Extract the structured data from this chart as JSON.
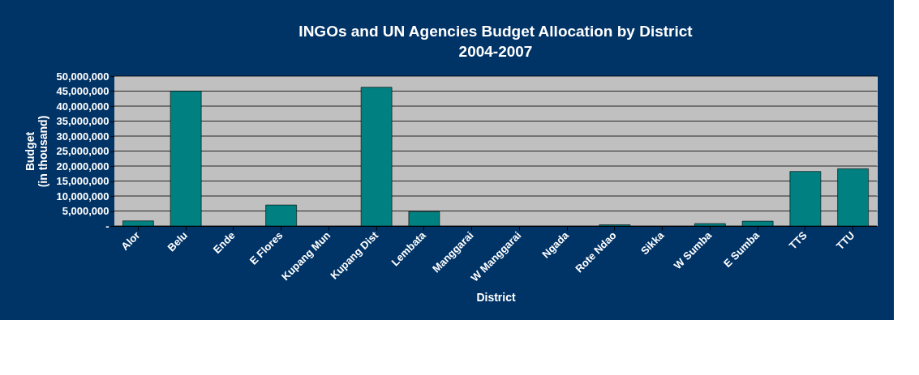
{
  "chart_data": {
    "type": "bar",
    "title": "INGOs and UN Agencies Budget Allocation by District",
    "subtitle": "2004-2007",
    "xlabel": "District",
    "ylabel": "Budget\n(in thousand)",
    "categories": [
      "Alor",
      "Belu",
      "Ende",
      "E Flores",
      "Kupang Mun",
      "Kupang Dist",
      "Lembata",
      "Manggarai",
      "W Manggarai",
      "Ngada",
      "Rote Ndao",
      "Sikka",
      "W Sumba",
      "E Sumba",
      "TTS",
      "TTU"
    ],
    "values": [
      1700000,
      45000000,
      null,
      7000000,
      null,
      46300000,
      4800000,
      null,
      null,
      null,
      400000,
      null,
      800000,
      1600000,
      18200000,
      19100000
    ],
    "color": "#008080",
    "ylim": [
      0,
      50000000
    ],
    "yticks": [
      {
        "value": 0,
        "label": "-"
      },
      {
        "value": 5000000,
        "label": "5,000,000"
      },
      {
        "value": 10000000,
        "label": "10,000,000"
      },
      {
        "value": 15000000,
        "label": "15,000,000"
      },
      {
        "value": 20000000,
        "label": "20,000,000"
      },
      {
        "value": 25000000,
        "label": "25,000,000"
      },
      {
        "value": 30000000,
        "label": "30,000,000"
      },
      {
        "value": 35000000,
        "label": "35,000,000"
      },
      {
        "value": 40000000,
        "label": "40,000,000"
      },
      {
        "value": 45000000,
        "label": "45,000,000"
      },
      {
        "value": 50000000,
        "label": "50,000,000"
      }
    ],
    "grid": "y"
  }
}
